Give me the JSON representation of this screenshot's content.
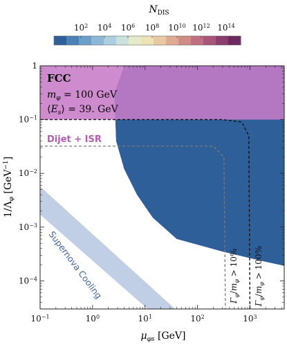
{
  "chart_data": {
    "type": "heatmap",
    "colorbar": {
      "title": "N_DIS",
      "ticks": [
        "10^2",
        "10^4",
        "10^6",
        "10^8",
        "10^10",
        "10^12",
        "10^14"
      ],
      "colors": [
        "#2f5f98",
        "#4a82b6",
        "#6a9fc9",
        "#8bb8d6",
        "#accfdd",
        "#cbe1dd",
        "#e4eaca",
        "#eee2b7",
        "#e9c9a3",
        "#dfaa92",
        "#d28c86",
        "#c06f80",
        "#a85578",
        "#8b3d6e",
        "#6d2a5e"
      ]
    },
    "x": {
      "label": "μ_φs [GeV]",
      "scale": "log",
      "lim": [
        0.1,
        4500
      ],
      "ticks": [
        "10^-1",
        "10^0",
        "10^1",
        "10^2",
        "10^3"
      ]
    },
    "y": {
      "label": "1/Λ_φ [GeV^-1]",
      "scale": "log",
      "lim": [
        3e-05,
        1
      ],
      "ticks": [
        "10^-4",
        "10^-3",
        "10^-2",
        "10^-1",
        "1"
      ]
    },
    "annotations": {
      "fcc": "FCC",
      "mass": "m_φ = 100 GeV",
      "energy": "⟨E_s⟩ = 39. GeV",
      "dijet": "Dijet + ISR",
      "supernova": "Supernova Cooling",
      "width10": "Γ_φ/m_φ > 10%",
      "width100": "Γ_φ/m_φ > 100%"
    },
    "regions": [
      {
        "name": "Dijet + ISR",
        "y_min": 0.1,
        "color": "#c77bc6"
      },
      {
        "name": "Supernova Cooling",
        "x_max_at_y_1e-4": 12,
        "color": "#b9cae3"
      }
    ],
    "sensitivity_boundary": [
      [
        4,
        1
      ],
      [
        2.6,
        0.3
      ],
      [
        2.8,
        0.04
      ],
      [
        4,
        0.012
      ],
      [
        7,
        0.004
      ],
      [
        14,
        0.0015
      ],
      [
        40,
        0.0006
      ],
      [
        300,
        0.00035
      ],
      [
        1500,
        0.00024
      ],
      [
        4500,
        0.00019
      ]
    ],
    "curves": [
      {
        "name": "Γ_φ/m_φ > 100%",
        "style": "dashed-black",
        "points": [
          [
            0.1,
            0.1
          ],
          [
            300,
            0.1
          ],
          [
            700,
            0.09
          ],
          [
            950,
            0.05
          ],
          [
            1000,
            3e-05
          ]
        ]
      },
      {
        "name": "Γ_φ/m_φ > 10%",
        "style": "dashed-gray",
        "points": [
          [
            0.1,
            0.032
          ],
          [
            200,
            0.032
          ],
          [
            320,
            0.02
          ],
          [
            340,
            3e-05
          ]
        ]
      }
    ]
  }
}
